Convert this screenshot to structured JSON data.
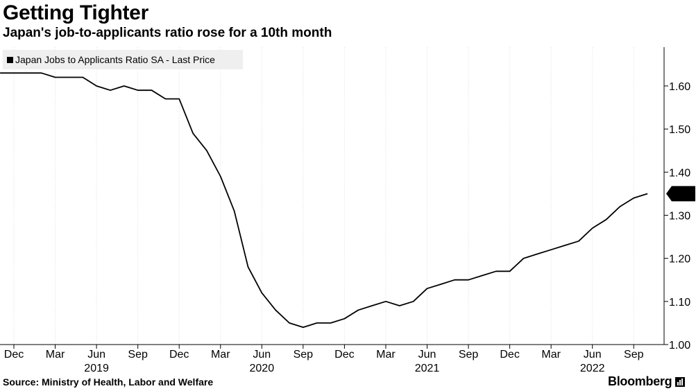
{
  "header": {
    "title": "Getting Tighter",
    "subtitle": "Japan's job-to-applicants ratio rose for a 10th month"
  },
  "footer": {
    "source": "Source: Ministry of Health, Labor and Welfare",
    "brand": "Bloomberg"
  },
  "chart_data": {
    "type": "line",
    "title": "Getting Tighter",
    "subtitle": "Japan's job-to-applicants ratio rose for a 10th month",
    "x_month_labels": [
      "Dec",
      "Mar",
      "Jun",
      "Sep",
      "Dec",
      "Mar",
      "Jun",
      "Sep",
      "Dec",
      "Mar",
      "Jun",
      "Sep",
      "Dec",
      "Mar",
      "Jun",
      "Sep"
    ],
    "x_year_labels": [
      "2019",
      "2020",
      "2021",
      "2022"
    ],
    "ylim": [
      1.0,
      1.69
    ],
    "yticks": [
      "1.00",
      "1.10",
      "1.20",
      "1.30",
      "1.40",
      "1.50",
      "1.60"
    ],
    "y_axis_position": "right",
    "legend_placement": "top-left",
    "grid": "vertical",
    "last_value_label": "1.35",
    "series": [
      {
        "name": "Japan Jobs to Applicants Ratio SA - Last Price",
        "color": "#000000",
        "x": [
          "2018-11",
          "2018-12",
          "2019-01",
          "2019-02",
          "2019-03",
          "2019-04",
          "2019-05",
          "2019-06",
          "2019-07",
          "2019-08",
          "2019-09",
          "2019-10",
          "2019-11",
          "2019-12",
          "2020-01",
          "2020-02",
          "2020-03",
          "2020-04",
          "2020-05",
          "2020-06",
          "2020-07",
          "2020-08",
          "2020-09",
          "2020-10",
          "2020-11",
          "2020-12",
          "2021-01",
          "2021-02",
          "2021-03",
          "2021-04",
          "2021-05",
          "2021-06",
          "2021-07",
          "2021-08",
          "2021-09",
          "2021-10",
          "2021-11",
          "2021-12",
          "2022-01",
          "2022-02",
          "2022-03",
          "2022-04",
          "2022-05",
          "2022-06",
          "2022-07",
          "2022-08",
          "2022-09",
          "2022-10"
        ],
        "values": [
          1.63,
          1.63,
          1.63,
          1.63,
          1.62,
          1.62,
          1.62,
          1.6,
          1.59,
          1.6,
          1.59,
          1.59,
          1.57,
          1.57,
          1.49,
          1.45,
          1.39,
          1.31,
          1.18,
          1.12,
          1.08,
          1.05,
          1.04,
          1.05,
          1.05,
          1.06,
          1.08,
          1.09,
          1.1,
          1.09,
          1.1,
          1.13,
          1.14,
          1.15,
          1.15,
          1.16,
          1.17,
          1.17,
          1.2,
          1.21,
          1.22,
          1.23,
          1.24,
          1.27,
          1.29,
          1.32,
          1.34,
          1.35
        ]
      }
    ]
  }
}
